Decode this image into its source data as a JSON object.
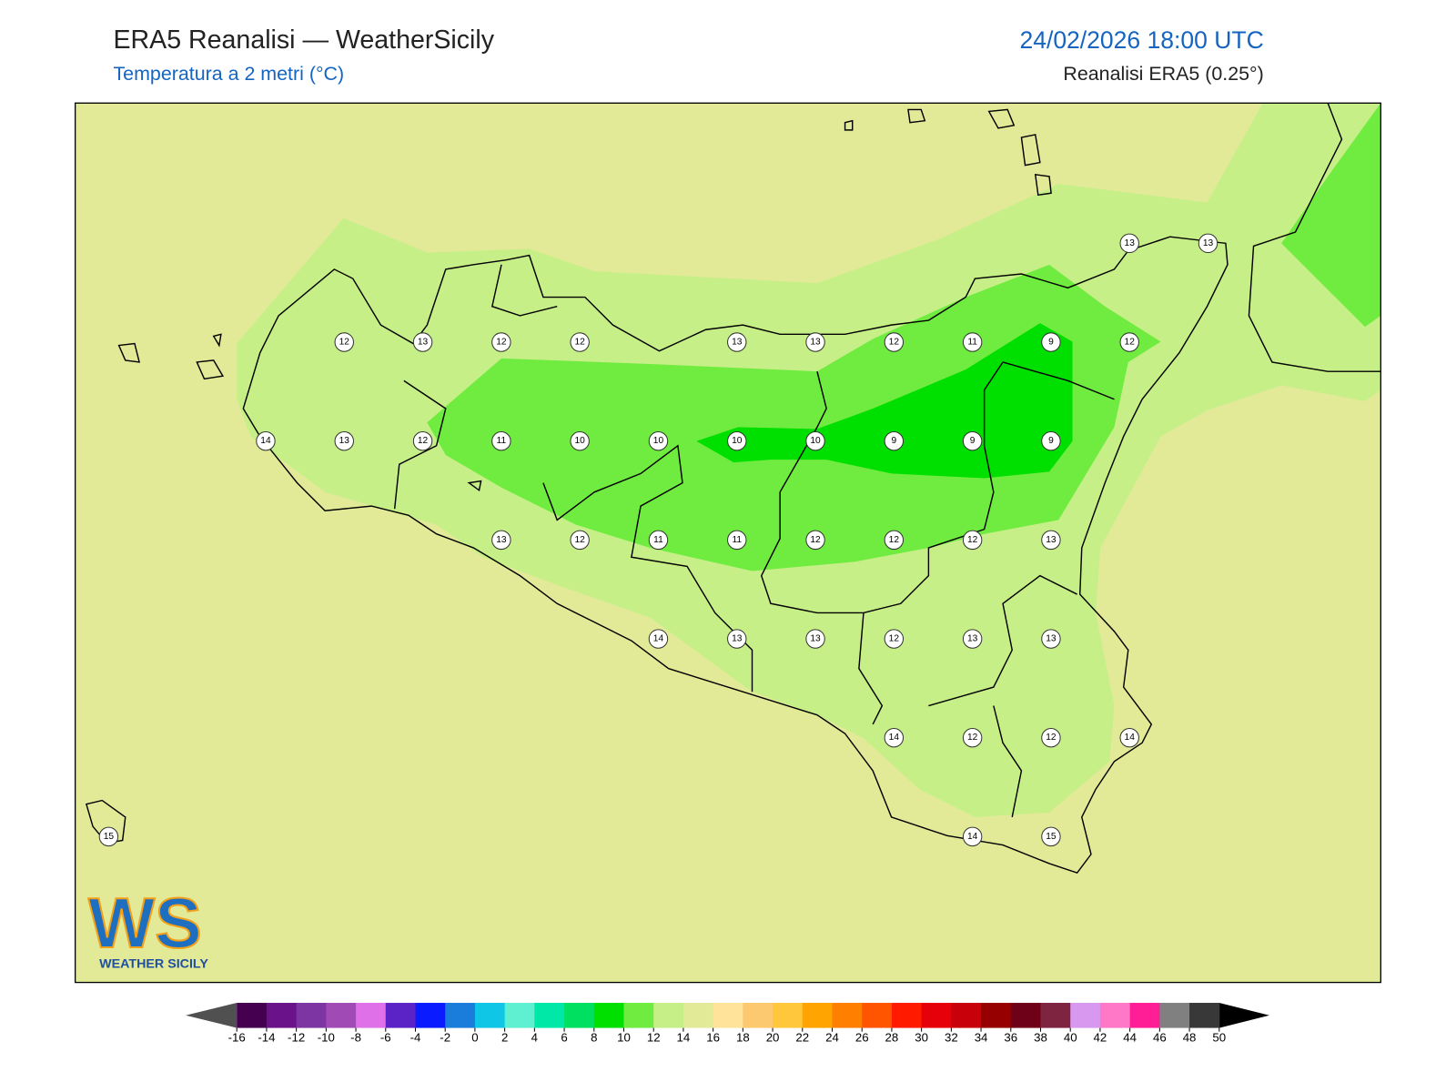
{
  "header": {
    "title": "ERA5 Reanalisi — WeatherSicily",
    "subtitle": "Temperatura a 2 metri (°C)",
    "datetime": "24/02/2026 18:00 UTC",
    "source": "Reanalisi ERA5 (0.25°)"
  },
  "map": {
    "station_grid": {
      "rows": [
        [
          null,
          null,
          null,
          null,
          null,
          null,
          null,
          null,
          null,
          null,
          null,
          null,
          null,
          13,
          13
        ],
        [
          null,
          null,
          null,
          12,
          13,
          12,
          12,
          null,
          13,
          13,
          12,
          11,
          9,
          12,
          null
        ],
        [
          null,
          null,
          14,
          13,
          12,
          11,
          10,
          10,
          10,
          10,
          9,
          9,
          9,
          null,
          null
        ],
        [
          null,
          null,
          null,
          null,
          null,
          13,
          12,
          11,
          11,
          12,
          12,
          12,
          13,
          null,
          null
        ],
        [
          null,
          null,
          null,
          null,
          null,
          null,
          null,
          14,
          13,
          13,
          12,
          13,
          13,
          null,
          null
        ],
        [
          null,
          null,
          null,
          null,
          null,
          null,
          null,
          null,
          null,
          null,
          14,
          12,
          12,
          14,
          null
        ],
        [
          15,
          null,
          null,
          null,
          null,
          null,
          null,
          null,
          null,
          null,
          null,
          14,
          15,
          null,
          null
        ]
      ]
    }
  },
  "colorbar": {
    "ticks": [
      -16,
      -14,
      -12,
      -10,
      -8,
      -6,
      -4,
      -2,
      0,
      2,
      4,
      6,
      8,
      10,
      12,
      14,
      16,
      18,
      20,
      22,
      24,
      26,
      28,
      30,
      32,
      34,
      36,
      38,
      40,
      42,
      44,
      46,
      48,
      50
    ],
    "colors": [
      "#450050",
      "#6a128a",
      "#7d35a3",
      "#a04bb5",
      "#e070e8",
      "#5b23c6",
      "#0a1cff",
      "#1a7ddc",
      "#10c6e6",
      "#5ff0d2",
      "#00e8a8",
      "#00e060",
      "#00e000",
      "#70ec40",
      "#c6ef88",
      "#e2ea98",
      "#ffe39a",
      "#fcc870",
      "#ffc83c",
      "#ffa400",
      "#ff8000",
      "#ff5500",
      "#ff1a00",
      "#e6000a",
      "#c8000a",
      "#960000",
      "#6e0018",
      "#7e2340",
      "#d898f0",
      "#ff78c8",
      "#ff1e96",
      "#808080",
      "#383838"
    ],
    "extend_colors": [
      "#505050",
      "#000000"
    ]
  },
  "logo": {
    "mark": "WS",
    "text": "WEATHER SICILY"
  }
}
